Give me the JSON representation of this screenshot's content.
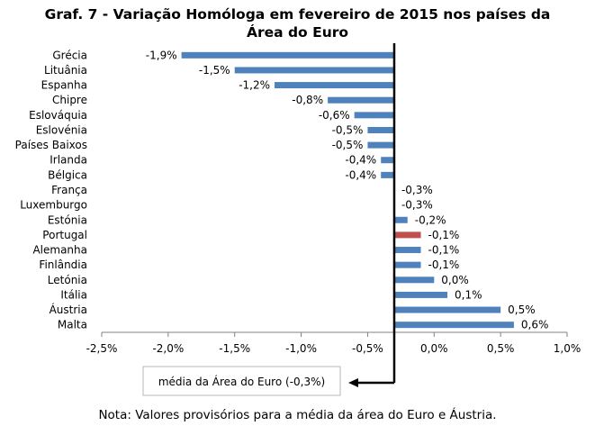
{
  "chart_data": {
    "type": "bar",
    "orientation": "horizontal",
    "title_lines": [
      "Graf. 7 - Variação Homóloga em fevereiro de 2015 nos países da",
      "Área do Euro"
    ],
    "categories": [
      "Grécia",
      "Lituânia",
      "Espanha",
      "Chipre",
      "Eslováquia",
      "Eslovénia",
      "Países Baixos",
      "Irlanda",
      "Bélgica",
      "França",
      "Luxemburgo",
      "Estónia",
      "Portugal",
      "Alemanha",
      "Finlândia",
      "Letónia",
      "Itália",
      "Áustria",
      "Malta"
    ],
    "values": [
      -1.9,
      -1.5,
      -1.2,
      -0.8,
      -0.6,
      -0.5,
      -0.5,
      -0.4,
      -0.4,
      -0.3,
      -0.3,
      -0.2,
      -0.1,
      -0.1,
      -0.1,
      0.0,
      0.1,
      0.5,
      0.6
    ],
    "data_labels": [
      "-1,9%",
      "-1,5%",
      "-1,2%",
      "-0,8%",
      "-0,6%",
      "-0,5%",
      "-0,5%",
      "-0,4%",
      "-0,4%",
      "-0,3%",
      "-0,3%",
      "-0,2%",
      "-0,1%",
      "-0,1%",
      "-0,1%",
      "0,0%",
      "0,1%",
      "0,5%",
      "0,6%"
    ],
    "xlim": [
      -2.5,
      1.0
    ],
    "x_ticks": [
      -2.5,
      -2.0,
      -1.5,
      -1.0,
      -0.5,
      0.0,
      0.5,
      1.0
    ],
    "x_tick_labels": [
      "-2,5%",
      "-2,0%",
      "-1,5%",
      "-1,0%",
      "-0,5%",
      "0,0%",
      "0,5%",
      "1,0%"
    ],
    "baseline": -0.3,
    "average_line_value": -0.3,
    "annotation": "média da Área do Euro (-0,3%)",
    "highlight_category": "Portugal",
    "colors": {
      "bar": "#4F81BD",
      "highlight": "#C0504D",
      "average_line": "#000000"
    },
    "grid": false,
    "legend": "none",
    "xlabel": "",
    "ylabel": ""
  },
  "note": "Nota: Valores provisórios para a média da área do Euro e Áustria."
}
